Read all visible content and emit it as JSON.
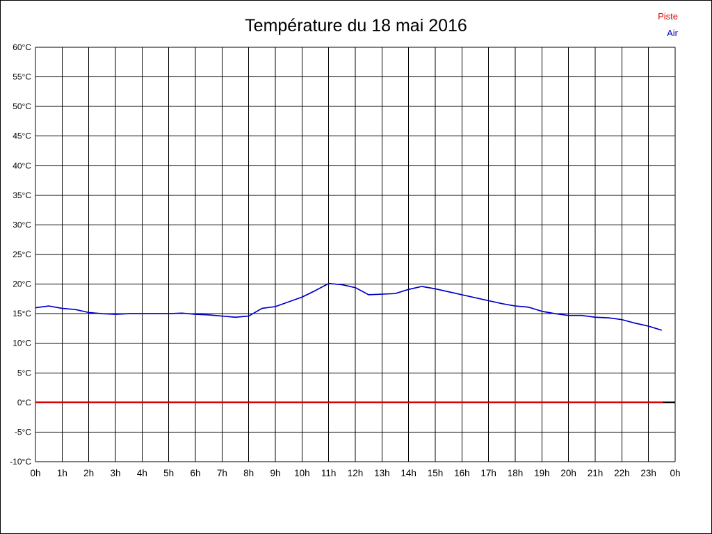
{
  "header": {
    "title": "Température du 18 mai 2016"
  },
  "legend": {
    "items": [
      {
        "label": "Piste",
        "color": "#dd0000"
      },
      {
        "label": "Air",
        "color": "#0000cc"
      }
    ]
  },
  "chart_data": {
    "type": "line",
    "title": "Température du 18 mai 2016",
    "xlabel": "",
    "ylabel": "",
    "xlim": [
      0,
      24
    ],
    "ylim": [
      -10,
      60
    ],
    "grid": true,
    "legend_position": "top-right",
    "x_ticks": [
      {
        "value": 0,
        "label": "0h"
      },
      {
        "value": 1,
        "label": "1h"
      },
      {
        "value": 2,
        "label": "2h"
      },
      {
        "value": 3,
        "label": "3h"
      },
      {
        "value": 4,
        "label": "4h"
      },
      {
        "value": 5,
        "label": "5h"
      },
      {
        "value": 6,
        "label": "6h"
      },
      {
        "value": 7,
        "label": "7h"
      },
      {
        "value": 8,
        "label": "8h"
      },
      {
        "value": 9,
        "label": "9h"
      },
      {
        "value": 10,
        "label": "10h"
      },
      {
        "value": 11,
        "label": "11h"
      },
      {
        "value": 12,
        "label": "12h"
      },
      {
        "value": 13,
        "label": "13h"
      },
      {
        "value": 14,
        "label": "14h"
      },
      {
        "value": 15,
        "label": "15h"
      },
      {
        "value": 16,
        "label": "16h"
      },
      {
        "value": 17,
        "label": "17h"
      },
      {
        "value": 18,
        "label": "18h"
      },
      {
        "value": 19,
        "label": "19h"
      },
      {
        "value": 20,
        "label": "20h"
      },
      {
        "value": 21,
        "label": "21h"
      },
      {
        "value": 22,
        "label": "22h"
      },
      {
        "value": 23,
        "label": "23h"
      },
      {
        "value": 24,
        "label": "0h"
      }
    ],
    "y_ticks": [
      {
        "value": 60,
        "label": "60°C"
      },
      {
        "value": 55,
        "label": "55°C"
      },
      {
        "value": 50,
        "label": "50°C"
      },
      {
        "value": 45,
        "label": "45°C"
      },
      {
        "value": 40,
        "label": "40°C"
      },
      {
        "value": 35,
        "label": "35°C"
      },
      {
        "value": 30,
        "label": "30°C"
      },
      {
        "value": 25,
        "label": "25°C"
      },
      {
        "value": 20,
        "label": "20°C"
      },
      {
        "value": 15,
        "label": "15°C"
      },
      {
        "value": 10,
        "label": "10°C"
      },
      {
        "value": 5,
        "label": "5°C"
      },
      {
        "value": 0,
        "label": "0°C"
      },
      {
        "value": -5,
        "label": "-5°C"
      },
      {
        "value": -10,
        "label": "-10°C"
      }
    ],
    "zero_line": {
      "value": 0,
      "color": "#000000"
    },
    "series": [
      {
        "name": "Piste",
        "color": "#dd0000",
        "x": [
          0,
          23.55
        ],
        "values": [
          0,
          0
        ]
      },
      {
        "name": "Air",
        "color": "#0000cc",
        "x": [
          0,
          0.5,
          1,
          1.5,
          2,
          2.5,
          3,
          3.5,
          4,
          4.5,
          5,
          5.5,
          6,
          6.5,
          7,
          7.5,
          8,
          8.5,
          9,
          9.5,
          10,
          10.5,
          11,
          11.5,
          12,
          12.5,
          13,
          13.5,
          14,
          14.5,
          15,
          15.5,
          16,
          16.5,
          17,
          17.5,
          18,
          18.5,
          19,
          19.5,
          20,
          20.5,
          21,
          21.5,
          22,
          22.5,
          23,
          23.5
        ],
        "values": [
          16.0,
          16.3,
          15.9,
          15.7,
          15.2,
          15.0,
          14.9,
          15.0,
          15.0,
          15.0,
          15.0,
          15.1,
          14.9,
          14.8,
          14.6,
          14.4,
          14.6,
          15.9,
          16.2,
          17.0,
          17.8,
          18.9,
          20.1,
          19.9,
          19.4,
          18.2,
          18.3,
          18.4,
          19.1,
          19.6,
          19.2,
          18.7,
          18.2,
          17.7,
          17.2,
          16.7,
          16.3,
          16.1,
          15.4,
          15.0,
          14.7,
          14.7,
          14.4,
          14.3,
          14.0,
          13.4,
          12.9,
          12.2
        ]
      }
    ]
  }
}
